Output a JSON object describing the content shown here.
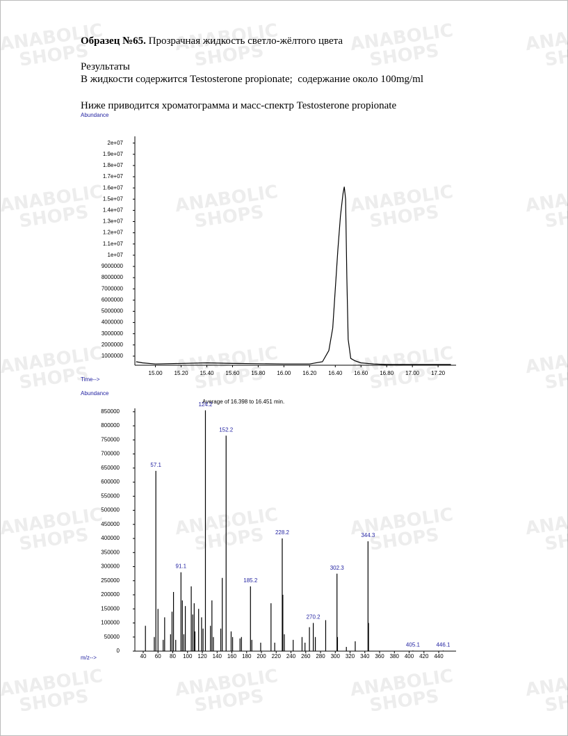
{
  "document": {
    "title_bold": "Образец №65.",
    "title_rest": "Прозрачная жидкость светло-жёлтого цвета",
    "results_heading": "Результаты",
    "results_text": "В жидкости содержится Testosterone propionate;  содержание около 100mg/ml",
    "intro": "Ниже приводится хроматограмма и масс-спектр Testosterone propionate",
    "watermark": [
      "ANABOLIC",
      "SHOPS"
    ]
  },
  "chart_data": [
    {
      "type": "line",
      "y_label": "Abundance",
      "x_label": "Time-->",
      "color": "#000000",
      "xlim": [
        14.84,
        17.34
      ],
      "ylim": [
        190000,
        20600000
      ],
      "xticks": [
        {
          "value": 15,
          "label": "15.00"
        },
        {
          "value": 15.2,
          "label": "15.20"
        },
        {
          "value": 15.4,
          "label": "15.40"
        },
        {
          "value": 15.6,
          "label": "15.60"
        },
        {
          "value": 15.8,
          "label": "15.80"
        },
        {
          "value": 16,
          "label": "16.00"
        },
        {
          "value": 16.2,
          "label": "16.20"
        },
        {
          "value": 16.4,
          "label": "16.40"
        },
        {
          "value": 16.6,
          "label": "16.60"
        },
        {
          "value": 16.8,
          "label": "16.80"
        },
        {
          "value": 17,
          "label": "17.00"
        },
        {
          "value": 17.2,
          "label": "17.20"
        }
      ],
      "yticks": [
        1000000,
        2000000,
        3000000,
        4000000,
        5000000,
        6000000,
        7000000,
        8000000,
        9000000,
        {
          "value": 10000000,
          "label": "1e+07"
        },
        {
          "value": 11000000,
          "label": "1.1e+07"
        },
        {
          "value": 12000000,
          "label": "1.2e+07"
        },
        {
          "value": 13000000,
          "label": "1.3e+07"
        },
        {
          "value": 14000000,
          "label": "1.4e+07"
        },
        {
          "value": 15000000,
          "label": "1.5e+07"
        },
        {
          "value": 16000000,
          "label": "1.6e+07"
        },
        {
          "value": 17000000,
          "label": "1.7e+07"
        },
        {
          "value": 18000000,
          "label": "1.8e+07"
        },
        {
          "value": 19000000,
          "label": "1.9e+07"
        },
        {
          "value": 20000000,
          "label": "2e+07"
        }
      ],
      "x": [
        14.85,
        14.9,
        15.0,
        15.4,
        15.6,
        16.0,
        16.2,
        16.3,
        16.35,
        16.38,
        16.4,
        16.42,
        16.44,
        16.46,
        16.47,
        16.48,
        16.49,
        16.5,
        16.52,
        16.55,
        16.6,
        16.7,
        16.8,
        17.0,
        17.3
      ],
      "values": [
        500000,
        400000,
        300000,
        400000,
        350000,
        300000,
        300000,
        500000,
        1500000,
        3500000,
        7000000,
        10500000,
        13500000,
        15500000,
        16100000,
        15000000,
        8000000,
        2500000,
        800000,
        600000,
        400000,
        300000,
        250000,
        250000,
        250000
      ]
    },
    {
      "type": "bar",
      "y_label": "Abundance",
      "x_label": "m/z-->",
      "annotation": "Average of 16.398 to 16.451 min.",
      "color": "#000000",
      "label_color": "#1f1fa0",
      "xlim": [
        28.7,
        463.5
      ],
      "ylim": [
        0,
        862000
      ],
      "xticks": [
        40,
        60,
        80,
        100,
        120,
        140,
        160,
        180,
        200,
        220,
        240,
        260,
        280,
        300,
        320,
        340,
        360,
        380,
        400,
        420,
        440
      ],
      "yticks": [
        0,
        50000,
        100000,
        150000,
        200000,
        250000,
        300000,
        350000,
        400000,
        450000,
        500000,
        550000,
        600000,
        650000,
        700000,
        750000,
        800000,
        850000
      ],
      "x": [
        43,
        55,
        57.1,
        60,
        67,
        69,
        77,
        79,
        81,
        84,
        91.1,
        93,
        95,
        97,
        105,
        107,
        109,
        110,
        115,
        119,
        121,
        124.2,
        131,
        133,
        135,
        145,
        147,
        152.2,
        159,
        161,
        171,
        173,
        185.2,
        187,
        199,
        213,
        218,
        228.2,
        229,
        231,
        243,
        255,
        259,
        265,
        270.2,
        273,
        287,
        302.3,
        303,
        315,
        327,
        344.3,
        345,
        405.1,
        446.1
      ],
      "values": [
        90000,
        50000,
        640000,
        150000,
        40000,
        120000,
        60000,
        140000,
        210000,
        40000,
        280000,
        180000,
        60000,
        160000,
        230000,
        130000,
        170000,
        70000,
        150000,
        120000,
        80000,
        855000,
        90000,
        180000,
        50000,
        80000,
        260000,
        765000,
        70000,
        50000,
        45000,
        50000,
        230000,
        40000,
        30000,
        170000,
        30000,
        400000,
        200000,
        60000,
        40000,
        50000,
        30000,
        85000,
        100000,
        50000,
        110000,
        275000,
        50000,
        15000,
        35000,
        390000,
        100000,
        2000,
        2000
      ],
      "peak_labels": [
        57.1,
        91.1,
        124.2,
        152.2,
        185.2,
        228.2,
        270.2,
        302.3,
        344.3,
        405.1,
        446.1
      ]
    }
  ]
}
